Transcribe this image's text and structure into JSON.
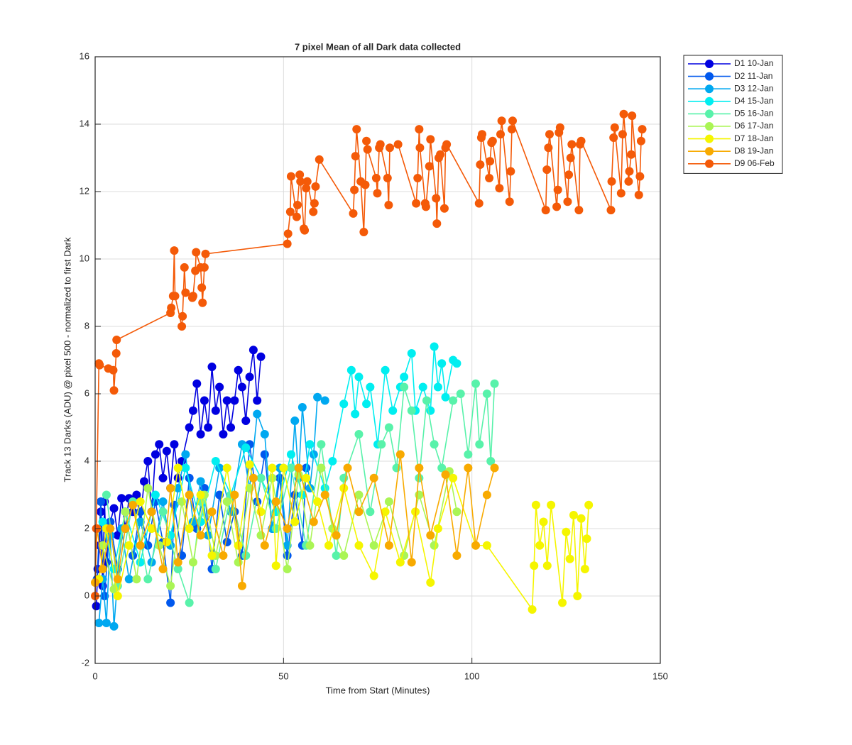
{
  "chart_data": {
    "type": "line",
    "title": "7 pixel Mean of all Dark data collected",
    "x_label": "Time from Start (Minutes)",
    "y_label": "Track 13 Darks (ADU) @ pixel 500 - normalized to first Dark",
    "xlim": [
      0,
      150
    ],
    "xticks": [
      0,
      50,
      100,
      150
    ],
    "ylim": [
      -2,
      16
    ],
    "yticks": [
      -2,
      0,
      2,
      4,
      6,
      8,
      10,
      12,
      14,
      16
    ],
    "grid": true,
    "legend": "outside-right",
    "series": [
      {
        "name": "D1 10-Jan",
        "color": "#0000e0",
        "x": [
          0.3,
          0.7,
          1.2,
          1.5,
          2,
          2.5,
          3,
          4,
          5,
          6,
          7,
          8,
          9,
          10,
          11,
          12,
          13,
          14,
          15,
          16,
          17,
          18,
          19,
          20,
          21,
          22,
          23,
          25,
          26,
          27,
          28,
          29,
          30,
          31,
          32,
          33,
          34,
          35,
          36,
          37,
          38,
          39,
          40,
          41,
          42,
          43,
          44
        ],
        "values": [
          -0.3,
          0.8,
          1.5,
          2.5,
          0.3,
          2.8,
          1,
          2.2,
          2.6,
          1.8,
          2.9,
          2,
          2.9,
          2.5,
          3,
          2.2,
          3.4,
          4,
          2.5,
          4.2,
          4.5,
          3.5,
          4.3,
          3.2,
          4.5,
          3.5,
          4,
          5,
          5.5,
          6.3,
          4.8,
          5.8,
          5,
          6.8,
          5.5,
          6.2,
          4.8,
          5.8,
          5,
          5.8,
          6.7,
          6.2,
          5.2,
          6.5,
          7.3,
          5.8,
          7.1
        ]
      },
      {
        "name": "D2 11-Jan",
        "color": "#0058ee",
        "x": [
          0.5,
          1.5,
          2.5,
          4,
          6,
          8,
          10,
          12,
          14,
          16,
          18,
          20,
          21,
          23,
          25,
          27,
          29,
          31,
          33,
          35,
          37,
          39,
          41,
          43,
          45,
          47,
          49,
          51,
          53,
          55,
          56
        ],
        "values": [
          0.5,
          2.8,
          0,
          2.2,
          0.8,
          2.5,
          1.2,
          2.5,
          1.5,
          2.8,
          1.6,
          -0.2,
          2.7,
          1.2,
          3.5,
          2,
          3.2,
          0.8,
          3,
          1.6,
          2.5,
          1.2,
          4.5,
          2.8,
          4.2,
          2,
          3.5,
          1.2,
          3,
          1.5,
          3.8
        ]
      },
      {
        "name": "D3 12-Jan",
        "color": "#00a8f0",
        "x": [
          1,
          2,
          3,
          4,
          5,
          7,
          9,
          12,
          15,
          18,
          20,
          22,
          24,
          26,
          28,
          30,
          33,
          36,
          39,
          41,
          43,
          45,
          47,
          49,
          51,
          53,
          54,
          55,
          57,
          58,
          59,
          61
        ],
        "values": [
          -0.8,
          0.5,
          -0.8,
          1.8,
          -0.9,
          2,
          0.5,
          2.2,
          1,
          2.8,
          1.5,
          3.2,
          4.2,
          2.2,
          3.4,
          1.8,
          3.8,
          2.5,
          4.5,
          3.2,
          5.4,
          4.8,
          2,
          3.8,
          1.5,
          5.2,
          3.5,
          5.6,
          3.2,
          4.2,
          5.9,
          5.8
        ]
      },
      {
        "name": "D4 15-Jan",
        "color": "#00eef0",
        "x": [
          2,
          5,
          8,
          12,
          16,
          20,
          24,
          28,
          32,
          36,
          40,
          44,
          48,
          52,
          55,
          57,
          61,
          63,
          66,
          68,
          69,
          70,
          72,
          73,
          75,
          77,
          79,
          81,
          82,
          84,
          85,
          87,
          89,
          90,
          91,
          92,
          93,
          95,
          96
        ],
        "values": [
          2.2,
          0.8,
          2.5,
          1,
          3,
          1.8,
          3.8,
          2.2,
          4,
          3,
          4.4,
          3.5,
          2.5,
          4.2,
          3,
          4.5,
          3.2,
          4,
          5.7,
          6.7,
          5.4,
          6.5,
          5.7,
          6.2,
          4.5,
          6.7,
          5.5,
          6.2,
          6.5,
          7.2,
          5.5,
          6.2,
          5.5,
          7.4,
          6.2,
          6.9,
          5.9,
          7,
          6.9
        ]
      },
      {
        "name": "D5 16-Jan",
        "color": "#58f2aa",
        "x": [
          3,
          6,
          10,
          14,
          18,
          22,
          25,
          28,
          32,
          36,
          40,
          44,
          48,
          52,
          56,
          60,
          64,
          66,
          70,
          73,
          76,
          78,
          80,
          82,
          84,
          86,
          88,
          90,
          92,
          95,
          97,
          99,
          101,
          102,
          104,
          105,
          106
        ],
        "values": [
          3,
          0.3,
          2.8,
          0.5,
          2.5,
          0.8,
          -0.2,
          2.8,
          0.8,
          3,
          1.2,
          3.5,
          2,
          3.8,
          1.5,
          4.5,
          1.2,
          3.5,
          4.8,
          2.5,
          4.5,
          5,
          3.8,
          6.2,
          5.5,
          3.5,
          5.8,
          4.5,
          3.8,
          5.8,
          6,
          4.2,
          6.3,
          4.5,
          6,
          4,
          6.3
        ]
      },
      {
        "name": "D6 17-Jan",
        "color": "#aaf555",
        "x": [
          2,
          5,
          8,
          11,
          14,
          17,
          20,
          23,
          26,
          29,
          32,
          35,
          38,
          41,
          44,
          47,
          51,
          54,
          57,
          60,
          63,
          66,
          70,
          74,
          78,
          82,
          86,
          90,
          94,
          96
        ],
        "values": [
          1.5,
          0.2,
          2.5,
          0.5,
          3.2,
          1.5,
          0.3,
          2.8,
          1,
          3,
          1.2,
          2.8,
          1,
          3.2,
          1.8,
          3.5,
          0.8,
          3.6,
          1.5,
          3.8,
          2,
          1.2,
          3,
          1.5,
          2.8,
          1.2,
          3,
          1.5,
          3.7,
          2.5
        ]
      },
      {
        "name": "D7 18-Jan",
        "color": "#f5f500",
        "x": [
          1,
          3,
          6,
          9,
          12,
          15,
          19,
          22,
          25,
          28,
          31,
          35,
          38,
          41,
          44,
          47,
          48,
          50,
          53,
          56,
          59,
          62,
          66,
          70,
          74,
          77,
          81,
          85,
          89,
          91,
          95,
          101,
          104,
          116,
          116.5,
          117,
          118,
          119,
          120,
          121,
          124,
          125,
          126,
          127,
          128,
          129,
          130,
          131,
          130.5
        ],
        "values": [
          0.5,
          2,
          0,
          1.5,
          2.8,
          2,
          1.6,
          3.8,
          2,
          3,
          1.2,
          3.8,
          1.5,
          3.9,
          2.5,
          3.8,
          0.9,
          3.8,
          2.2,
          3.5,
          2.8,
          1.5,
          3.2,
          1.5,
          0.6,
          2.5,
          1,
          2.5,
          0.4,
          2,
          3.5,
          1.5,
          1.5,
          -0.4,
          0.9,
          2.7,
          1.5,
          2.2,
          0.9,
          2.7,
          -0.2,
          1.9,
          1.1,
          2.4,
          0,
          2.3,
          0.8,
          2.7,
          1.7
        ]
      },
      {
        "name": "D8 19-Jan",
        "color": "#f8aa00",
        "x": [
          0,
          0.5,
          2,
          4,
          6,
          8,
          10,
          12,
          15,
          18,
          20,
          22,
          25,
          28,
          31,
          34,
          37,
          39,
          42,
          45,
          48,
          51,
          54,
          58,
          61,
          64,
          67,
          70,
          74,
          78,
          81,
          84,
          86,
          89,
          93,
          96,
          99,
          101,
          104,
          106
        ],
        "values": [
          0.4,
          2,
          0.8,
          2,
          0.5,
          2,
          2.7,
          1.5,
          2.5,
          0.8,
          3.2,
          1,
          3,
          1.8,
          2.5,
          1.2,
          3,
          0.3,
          3.5,
          1.5,
          2.8,
          2,
          3.8,
          2.2,
          3,
          1.8,
          3.8,
          2.5,
          3.5,
          1.5,
          4.2,
          1,
          3.8,
          1.8,
          3.6,
          1.2,
          3.8,
          1.5,
          3,
          3.8
        ]
      },
      {
        "name": "D9 06-Feb",
        "color": "#f45a08",
        "x": [
          0,
          0.3,
          1,
          1.2,
          3.5,
          4.8,
          5,
          5.6,
          5.7,
          20,
          20.2,
          20.7,
          21,
          21.2,
          23,
          23.2,
          23.7,
          24,
          25.8,
          26,
          26.6,
          26.8,
          28,
          28.3,
          28.5,
          29,
          29.3,
          51,
          51.2,
          51.8,
          52,
          53.5,
          53.7,
          54.3,
          54.5,
          55.4,
          55.6,
          56,
          56.3,
          57.9,
          58.2,
          58.5,
          59.5,
          68.5,
          68.8,
          69.1,
          69.4,
          70.5,
          71.3,
          71.7,
          72,
          72.3,
          74.6,
          74.9,
          75.4,
          75.7,
          77.6,
          77.9,
          78.2,
          80.4,
          85.2,
          85.6,
          86,
          86.2,
          87.6,
          87.8,
          88.7,
          89,
          90.5,
          90.7,
          91.2,
          91.6,
          92.7,
          93,
          93.3,
          101.9,
          102.2,
          102.5,
          102.7,
          104.6,
          104.8,
          105.2,
          105.5,
          107.3,
          107.6,
          107.9,
          110,
          110.3,
          110.6,
          110.8,
          119.6,
          119.9,
          120.3,
          120.6,
          122.5,
          122.8,
          123.1,
          123.4,
          125.4,
          125.7,
          126.2,
          126.5,
          128.4,
          128.7,
          129,
          136.9,
          137.1,
          137.6,
          137.9,
          139.6,
          140,
          140.3,
          141.6,
          141.8,
          142.3,
          142.5,
          144.3,
          144.6,
          144.9,
          145.2
        ],
        "values": [
          0,
          2,
          6.9,
          6.85,
          6.75,
          6.7,
          6.1,
          7.2,
          7.6,
          8.4,
          8.55,
          8.9,
          10.25,
          8.9,
          8,
          8.3,
          9.75,
          9,
          8.85,
          8.9,
          9.65,
          10.2,
          9.75,
          9.15,
          8.7,
          9.75,
          10.15,
          10.45,
          10.75,
          11.4,
          12.45,
          11.25,
          11.6,
          12.5,
          12.3,
          10.9,
          10.85,
          12.1,
          12.3,
          11.4,
          11.65,
          12.15,
          12.95,
          11.35,
          12.05,
          13.05,
          13.85,
          12.3,
          10.8,
          12.2,
          13.5,
          13.25,
          12.4,
          11.95,
          13.3,
          13.4,
          12.4,
          11.6,
          13.3,
          13.4,
          11.65,
          12.4,
          13.85,
          13.3,
          11.65,
          11.55,
          12.75,
          13.55,
          11.8,
          11.05,
          13,
          13.1,
          11.5,
          13.3,
          13.4,
          11.65,
          12.8,
          13.6,
          13.7,
          12.4,
          12.9,
          13.45,
          13.5,
          12.1,
          13.7,
          14.1,
          11.7,
          12.6,
          13.85,
          14.1,
          11.45,
          12.65,
          13.3,
          13.7,
          11.55,
          12.05,
          13.75,
          13.9,
          11.7,
          12.5,
          13,
          13.4,
          11.45,
          13.4,
          13.5,
          11.45,
          12.3,
          13.6,
          13.9,
          11.95,
          13.7,
          14.3,
          12.3,
          12.6,
          13.1,
          14.25,
          11.9,
          12.45,
          13.5,
          13.85
        ]
      }
    ]
  }
}
